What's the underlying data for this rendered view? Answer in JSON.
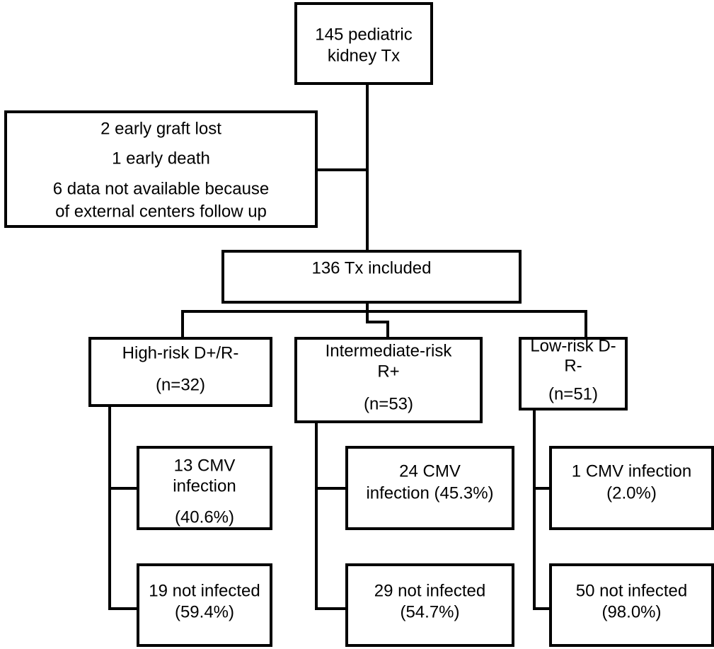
{
  "nodes": [
    {
      "lines": [
        "145 pediatric",
        "kidney Tx"
      ]
    },
    {
      "lines": [
        "2 early graft lost",
        "1 early death",
        "6 data not available because",
        "of external centers follow up"
      ]
    },
    {
      "lines": [
        "136 Tx included"
      ]
    },
    {
      "lines": [
        "High-risk D+/R-",
        "(n=32)"
      ]
    },
    {
      "lines": [
        "Intermediate-risk",
        "R+",
        "(n=53)"
      ]
    },
    {
      "lines": [
        "Low-risk D-",
        "R-",
        "(n=51)"
      ]
    },
    {
      "lines": [
        "13 CMV",
        "infection",
        "(40.6%)"
      ]
    },
    {
      "lines": [
        "19 not infected",
        "(59.4%)"
      ]
    },
    {
      "lines": [
        "24 CMV",
        "infection (45.3%)"
      ]
    },
    {
      "lines": [
        "29 not infected",
        "(54.7%)"
      ]
    },
    {
      "lines": [
        "1 CMV infection",
        "(2.0%)"
      ]
    },
    {
      "lines": [
        "50 not infected",
        "(98.0%)"
      ]
    }
  ]
}
